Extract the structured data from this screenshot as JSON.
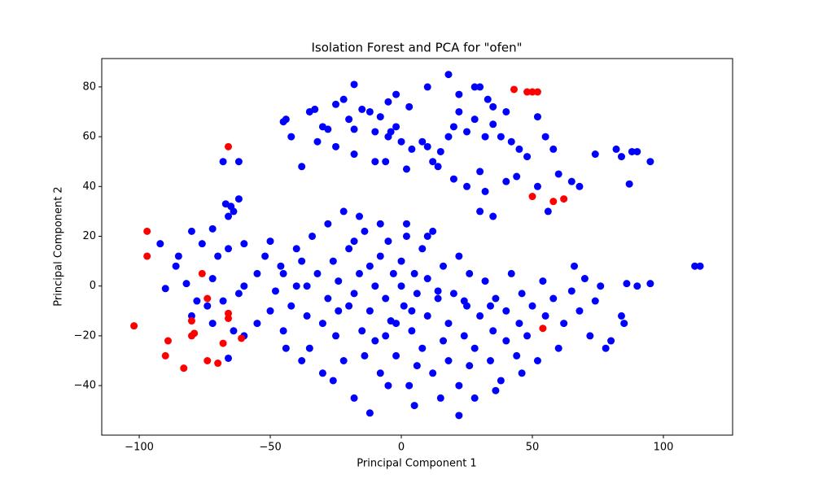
{
  "chart_data": {
    "type": "scatter",
    "title": "Isolation Forest and PCA for \"ofen\"",
    "x_label": "Principal Component 1",
    "y_label": "Principal Component 2",
    "xlim": [
      -114.3,
      126.4
    ],
    "ylim": [
      -59.9,
      91.4
    ],
    "xticks": [
      {
        "value": -100,
        "label": "−100"
      },
      {
        "value": -50,
        "label": "−50"
      },
      0,
      50,
      100
    ],
    "yticks": [
      {
        "value": -40,
        "label": "−40"
      },
      {
        "value": -20,
        "label": "−20"
      },
      0,
      20,
      40,
      60,
      80
    ],
    "series": [
      {
        "color": "#0000ff",
        "x": [
          -18,
          -35,
          -33,
          -30,
          -25,
          -22,
          -15,
          -12,
          -8,
          -5,
          -2,
          3,
          10,
          18,
          22,
          28,
          30,
          33,
          35,
          40,
          -44,
          -42,
          -38,
          -32,
          -28,
          -25,
          -20,
          -18,
          -10,
          -5,
          -2,
          0,
          4,
          8,
          12,
          15,
          18,
          20,
          22,
          25,
          28,
          32,
          35,
          38,
          42,
          45,
          48,
          52,
          55,
          58,
          -18,
          -10,
          -6,
          2,
          10,
          14,
          20,
          25,
          30,
          32,
          35,
          30,
          40,
          44,
          52,
          56,
          60,
          65,
          68,
          74,
          82,
          84,
          88,
          90,
          95,
          87,
          -68,
          -62,
          -45,
          -4,
          -67,
          -65,
          -64,
          -62,
          -66,
          -72,
          -76,
          -80,
          -85,
          -92,
          -90,
          -86,
          -82,
          -78,
          -74,
          -72,
          -68,
          -70,
          -66,
          -60,
          -60,
          -62,
          -64,
          -72,
          -80,
          -66,
          -60,
          -55,
          -52,
          -50,
          -48,
          -45,
          -42,
          -40,
          -38,
          -36,
          -35,
          -32,
          -30,
          -28,
          -26,
          -25,
          -24,
          -22,
          -20,
          -20,
          -18,
          -16,
          -15,
          -14,
          -12,
          -12,
          -10,
          -10,
          -8,
          -8,
          -6,
          -5,
          -4,
          -3,
          -2,
          0,
          0,
          1,
          2,
          3,
          4,
          5,
          6,
          8,
          8,
          10,
          10,
          12,
          12,
          14,
          15,
          16,
          18,
          18,
          20,
          22,
          22,
          24,
          25,
          26,
          28,
          28,
          30,
          32,
          34,
          35,
          36,
          38,
          40,
          40,
          42,
          44,
          45,
          46,
          48,
          50,
          52,
          54,
          55,
          58,
          60,
          62,
          65,
          66,
          68,
          70,
          72,
          74,
          76,
          78,
          80,
          84,
          86,
          90,
          95,
          112,
          114,
          85,
          -30,
          -18,
          -12,
          -5,
          5,
          22,
          -45,
          -40,
          -34,
          -28,
          -22,
          -16,
          -8,
          2,
          10,
          -50,
          -44,
          -38,
          -26,
          -14,
          -2,
          6,
          16,
          26,
          36,
          46,
          -55,
          -46,
          -36,
          -24,
          -18,
          -6,
          4,
          14,
          24,
          34
        ],
        "values": [
          81,
          70,
          71,
          64,
          73,
          75,
          71,
          70,
          68,
          74,
          77,
          72,
          80,
          85,
          77,
          80,
          80,
          75,
          72,
          70,
          67,
          60,
          48,
          58,
          63,
          56,
          67,
          63,
          62,
          60,
          64,
          58,
          55,
          58,
          50,
          54,
          60,
          64,
          70,
          62,
          67,
          60,
          65,
          60,
          58,
          55,
          52,
          68,
          60,
          55,
          53,
          50,
          50,
          47,
          56,
          48,
          43,
          40,
          46,
          38,
          28,
          30,
          42,
          44,
          40,
          30,
          45,
          42,
          40,
          53,
          55,
          52,
          54,
          54,
          50,
          41,
          50,
          50,
          66,
          62,
          33,
          32,
          30,
          35,
          28,
          23,
          17,
          22,
          12,
          17,
          -1,
          8,
          1,
          -6,
          -8,
          3,
          -6,
          12,
          15,
          17,
          0,
          -3,
          -18,
          -15,
          -12,
          -29,
          -20,
          5,
          12,
          18,
          -2,
          5,
          -8,
          0,
          10,
          -12,
          -25,
          5,
          -15,
          -5,
          10,
          -20,
          2,
          -30,
          15,
          -8,
          -3,
          5,
          -18,
          22,
          -10,
          8,
          0,
          -22,
          12,
          -35,
          -5,
          18,
          -14,
          5,
          -28,
          0,
          10,
          -8,
          20,
          -40,
          -18,
          5,
          -3,
          15,
          -25,
          -12,
          3,
          -35,
          22,
          -5,
          -45,
          8,
          -15,
          -30,
          -3,
          12,
          -40,
          -20,
          -8,
          5,
          -25,
          -45,
          -12,
          2,
          -30,
          -18,
          -5,
          -38,
          -22,
          -10,
          5,
          -28,
          -15,
          -3,
          -20,
          -8,
          -30,
          2,
          -12,
          -5,
          -25,
          -15,
          -2,
          8,
          -10,
          3,
          -20,
          -6,
          0,
          -25,
          -22,
          -12,
          1,
          0,
          1,
          8,
          8,
          -15,
          -35,
          -45,
          -51,
          -40,
          -48,
          -52,
          -18,
          15,
          20,
          25,
          30,
          28,
          25,
          25,
          20,
          -10,
          -25,
          -30,
          -38,
          -28,
          -15,
          -32,
          -22,
          -32,
          -42,
          -35,
          -15,
          8,
          0,
          -10,
          18,
          -20,
          -10,
          -2,
          -6,
          -8
        ]
      },
      {
        "color": "#ff0000",
        "x": [
          -102,
          -97,
          -97,
          -89,
          -90,
          -83,
          -80,
          -79,
          -80,
          -76,
          -74,
          -74,
          -70,
          -68,
          -66,
          -66,
          -61,
          -66,
          43,
          48,
          50,
          52,
          50,
          58,
          62,
          54
        ],
        "values": [
          -16,
          22,
          12,
          -22,
          -28,
          -33,
          -20,
          -19,
          -14,
          5,
          -5,
          -30,
          -31,
          -23,
          -11,
          -13,
          -21,
          56,
          79,
          78,
          78,
          78,
          36,
          34,
          35,
          -17
        ]
      }
    ]
  }
}
